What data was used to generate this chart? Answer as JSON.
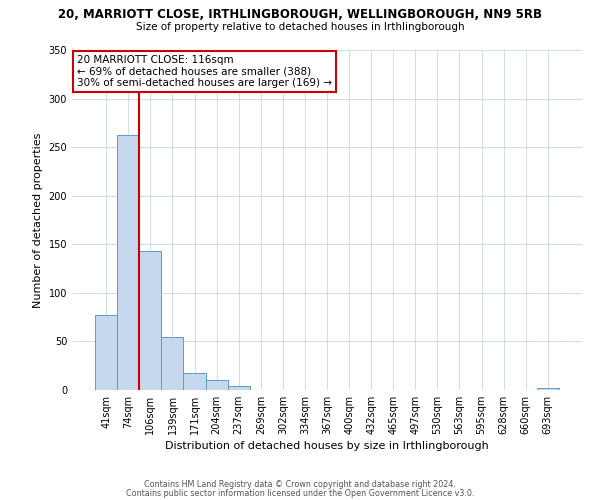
{
  "title": "20, MARRIOTT CLOSE, IRTHLINGBOROUGH, WELLINGBOROUGH, NN9 5RB",
  "subtitle": "Size of property relative to detached houses in Irthlingborough",
  "xlabel": "Distribution of detached houses by size in Irthlingborough",
  "ylabel": "Number of detached properties",
  "bar_labels": [
    "41sqm",
    "74sqm",
    "106sqm",
    "139sqm",
    "171sqm",
    "204sqm",
    "237sqm",
    "269sqm",
    "302sqm",
    "334sqm",
    "367sqm",
    "400sqm",
    "432sqm",
    "465sqm",
    "497sqm",
    "530sqm",
    "563sqm",
    "595sqm",
    "628sqm",
    "660sqm",
    "693sqm"
  ],
  "bar_values": [
    77,
    262,
    143,
    55,
    18,
    10,
    4,
    0,
    0,
    0,
    0,
    0,
    0,
    0,
    0,
    0,
    0,
    0,
    0,
    0,
    2
  ],
  "bar_color": "#c5d8ed",
  "bar_edge_color": "#5b9bd5",
  "property_line_color": "#cc0000",
  "annotation_line1": "20 MARRIOTT CLOSE: 116sqm",
  "annotation_line2": "← 69% of detached houses are smaller (388)",
  "annotation_line3": "30% of semi-detached houses are larger (169) →",
  "annotation_box_color": "#ffffff",
  "annotation_box_edge_color": "#cc0000",
  "ylim": [
    0,
    350
  ],
  "yticks": [
    0,
    50,
    100,
    150,
    200,
    250,
    300,
    350
  ],
  "footer_line1": "Contains HM Land Registry data © Crown copyright and database right 2024.",
  "footer_line2": "Contains public sector information licensed under the Open Government Licence v3.0.",
  "background_color": "#ffffff",
  "grid_color": "#c8d8e8"
}
